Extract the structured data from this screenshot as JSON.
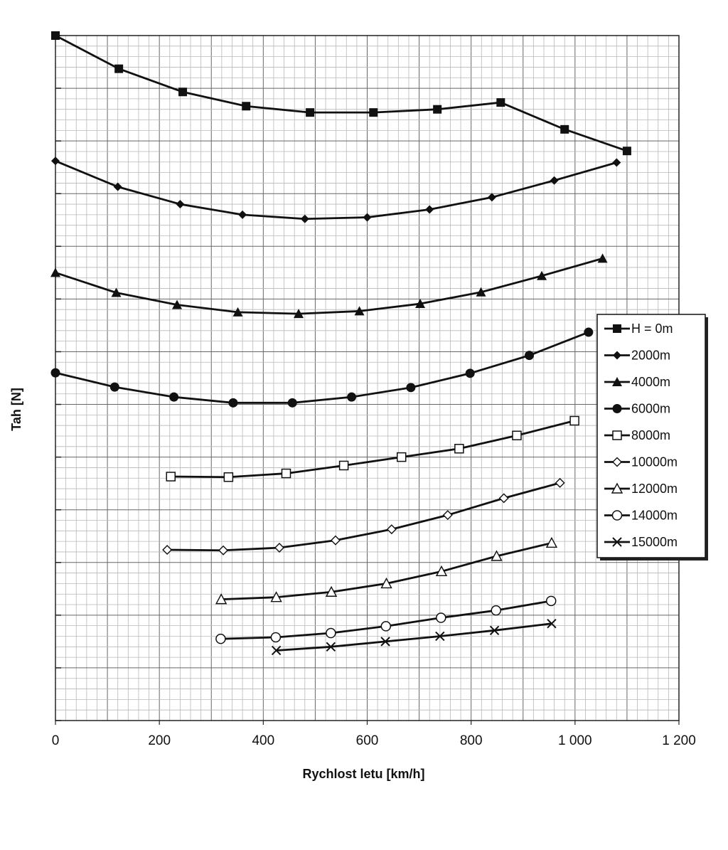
{
  "chart_data": {
    "type": "line",
    "title": "",
    "xlabel": "Rychlost letu [km/h]",
    "ylabel": "Tah [N]",
    "xlim": [
      0,
      1200
    ],
    "ylim": [
      0,
      13
    ],
    "x_ticks": [
      0,
      200,
      400,
      600,
      800,
      1000,
      1200
    ],
    "x_tick_labels": [
      "0",
      "200",
      "400",
      "600",
      "800",
      "1 000",
      "1 200"
    ],
    "y_ticks": [
      0,
      1,
      2,
      3,
      4,
      5,
      6,
      7,
      8,
      9,
      10,
      11,
      12,
      13
    ],
    "grid": true,
    "legend_position": "right",
    "series": [
      {
        "name": "H = 0m",
        "marker": "square-filled",
        "x": [
          0,
          122,
          245,
          367,
          490,
          612,
          735,
          857,
          980,
          1100
        ],
        "y": [
          13.0,
          12.37,
          11.93,
          11.66,
          11.54,
          11.54,
          11.6,
          11.73,
          11.22,
          10.81
        ]
      },
      {
        "name": "2000m",
        "marker": "diamond-filled",
        "x": [
          0,
          120,
          240,
          360,
          480,
          600,
          720,
          840,
          960,
          1080
        ],
        "y": [
          10.62,
          10.13,
          9.8,
          9.6,
          9.52,
          9.55,
          9.7,
          9.93,
          10.25,
          10.59
        ]
      },
      {
        "name": "4000m",
        "marker": "triangle-filled",
        "x": [
          0,
          117,
          234,
          351,
          468,
          585,
          702,
          819,
          936,
          1053
        ],
        "y": [
          8.5,
          8.12,
          7.89,
          7.75,
          7.72,
          7.77,
          7.91,
          8.13,
          8.44,
          8.77
        ]
      },
      {
        "name": "6000m",
        "marker": "circle-filled",
        "x": [
          0,
          114,
          228,
          342,
          456,
          570,
          684,
          798,
          912,
          1026
        ],
        "y": [
          6.6,
          6.33,
          6.14,
          6.03,
          6.03,
          6.14,
          6.32,
          6.59,
          6.93,
          7.37
        ]
      },
      {
        "name": "8000m",
        "marker": "square-open",
        "x": [
          222,
          333,
          444,
          555,
          666,
          777,
          888,
          999
        ],
        "y": [
          4.63,
          4.62,
          4.69,
          4.84,
          5.0,
          5.16,
          5.41,
          5.69
        ]
      },
      {
        "name": "10000m",
        "marker": "diamond-open",
        "x": [
          215,
          323,
          431,
          539,
          647,
          755,
          863,
          971
        ],
        "y": [
          3.24,
          3.23,
          3.28,
          3.42,
          3.63,
          3.9,
          4.22,
          4.51
        ]
      },
      {
        "name": "12000m",
        "marker": "triangle-open",
        "x": [
          319,
          425,
          531,
          637,
          743,
          849,
          955
        ],
        "y": [
          2.3,
          2.34,
          2.44,
          2.6,
          2.83,
          3.12,
          3.37
        ]
      },
      {
        "name": "14000m",
        "marker": "circle-open",
        "x": [
          318,
          424,
          530,
          636,
          742,
          848,
          954
        ],
        "y": [
          1.55,
          1.58,
          1.66,
          1.79,
          1.95,
          2.09,
          2.27
        ]
      },
      {
        "name": "15000m",
        "marker": "x",
        "x": [
          425,
          530,
          635,
          740,
          845,
          955
        ],
        "y": [
          1.33,
          1.4,
          1.5,
          1.6,
          1.71,
          1.84
        ]
      }
    ]
  }
}
